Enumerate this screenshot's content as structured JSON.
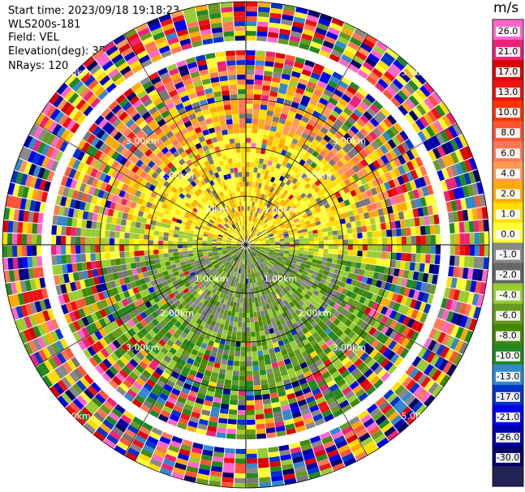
{
  "header": {
    "start_time": "Start time: 2023/09/18 19:18:23",
    "instrument": "WLS200s-181",
    "field": "Field: VEL",
    "elevation": "Elevation(deg): 35.30",
    "nrays": "NRays: 120"
  },
  "chart_data": {
    "type": "ppi-polar-heatmap",
    "field": "VEL",
    "unit": "m/s",
    "nrays": 120,
    "range_rings_km": [
      1,
      2,
      3,
      5
    ],
    "ring_labels": {
      "ring1": "1.00km",
      "ring2": "2.00km",
      "ring3": "3.00km",
      "ring5": "5.00km"
    },
    "colorbar": {
      "levels": [
        "26.0",
        "21.0",
        "17.0",
        "13.0",
        "10.0",
        "8.0",
        "6.0",
        "4.0",
        "2.0",
        "1.0",
        "0.0",
        "-1.0",
        "-2.0",
        "-4.0",
        "-6.0",
        "-8.0",
        "-10.0",
        "-13.0",
        "-17.0",
        "-21.0",
        "-26.0",
        "-30.0"
      ],
      "colors": [
        "#ff66cc",
        "#ee2277",
        "#dd0000",
        "#ee1111",
        "#ff3300",
        "#ff5533",
        "#ff7755",
        "#ff9955",
        "#ffaa00",
        "#ffdd00",
        "#ffff33",
        "#888888",
        "#666666",
        "#99cc33",
        "#669922",
        "#448800",
        "#228822",
        "#3388cc",
        "#0033cc",
        "#0000ee",
        "#0000aa",
        "#000066",
        "#222255"
      ]
    }
  }
}
